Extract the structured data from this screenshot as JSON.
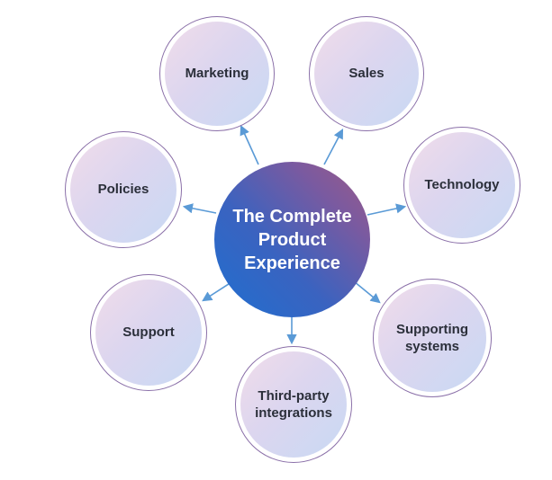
{
  "hub": {
    "label": "The Complete\nProduct\nExperience"
  },
  "nodes": [
    {
      "key": "marketing",
      "label": "Marketing"
    },
    {
      "key": "sales",
      "label": "Sales"
    },
    {
      "key": "technology",
      "label": "Technology"
    },
    {
      "key": "supporting",
      "label": "Supporting\nsystems"
    },
    {
      "key": "integrations",
      "label": "Third-party\nintegrations"
    },
    {
      "key": "support",
      "label": "Support"
    },
    {
      "key": "policies",
      "label": "Policies"
    }
  ],
  "colors": {
    "arrow": "#5a9ad6",
    "ring": "#8a6fa8"
  }
}
